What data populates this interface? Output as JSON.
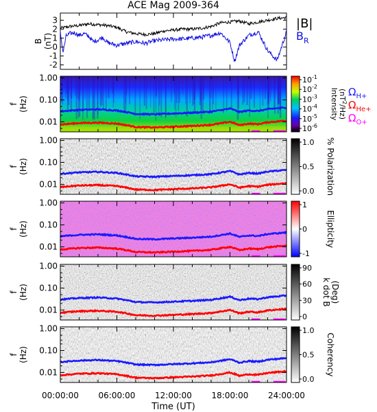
{
  "title": "ACE Mag 2009-364",
  "colors": {
    "B_total": "#000000",
    "B_R": "#1010e0",
    "omega_H": "#1a1aff",
    "omega_He": "#ff0000",
    "omega_O": "#ff00ff"
  },
  "legend_top": {
    "B_total": "|B|",
    "B_R_main": "B",
    "B_R_sub": "R"
  },
  "legend_spec": {
    "H_main": "Ω",
    "H_sub": "H+",
    "He_main": "Ω",
    "He_sub": "He+",
    "O_main": "Ω",
    "O_sub": "O+"
  },
  "colorbars": {
    "intensity": {
      "label": "Intensity",
      "unit_main": "(nT",
      "unit_sup": "2",
      "unit_end": "/Hz)",
      "ticks": [
        {
          "main": "10",
          "sup": "-1"
        },
        {
          "main": "10",
          "sup": "-2"
        },
        {
          "main": "10",
          "sup": "-3"
        },
        {
          "main": "10",
          "sup": "-4"
        },
        {
          "main": "10",
          "sup": "-5"
        },
        {
          "main": "10",
          "sup": "-6"
        }
      ]
    },
    "polarization": {
      "label": "% Polarization",
      "ticks": [
        "1.0",
        "0.5",
        "0.0"
      ]
    },
    "ellipticity": {
      "label": "Ellipticity",
      "ticks": [
        "1",
        "0",
        "-1"
      ]
    },
    "k_dot_b": {
      "label": "k dot B",
      "unit": "(Deg)",
      "ticks": [
        "90",
        "60",
        "30",
        "0"
      ]
    },
    "coherency": {
      "label": "Coherency",
      "ticks": [
        "1.0",
        "0.5",
        "0.0"
      ]
    }
  },
  "chart_data": [
    {
      "type": "line",
      "panel": "magnetic field",
      "ylabel_main": "B",
      "ylabel_unit": "(nT)",
      "yticks": [
        "3",
        "2",
        "1",
        "0",
        "-1",
        "-2"
      ],
      "ylim": [
        -2.5,
        3.8
      ],
      "xlim_hours": [
        0,
        24
      ],
      "series": [
        {
          "name": "|B|",
          "x": [
            0,
            1,
            2,
            3,
            4,
            5,
            6,
            7,
            8,
            9,
            10,
            11,
            12,
            13,
            14,
            15,
            16,
            17,
            18,
            19,
            20,
            21,
            22,
            23,
            24
          ],
          "values": [
            2.1,
            2.3,
            2.4,
            2.6,
            2.5,
            2.4,
            2.2,
            1.7,
            1.5,
            1.4,
            1.5,
            1.8,
            1.9,
            2.0,
            2.0,
            2.1,
            2.3,
            2.7,
            2.8,
            2.9,
            2.6,
            2.8,
            3.0,
            3.2,
            3.3
          ]
        },
        {
          "name": "B_R",
          "x": [
            0,
            0.3,
            0.6,
            1,
            1.5,
            2,
            2.5,
            3,
            3.5,
            4,
            4.5,
            5,
            6,
            7,
            8,
            9,
            10,
            11,
            12,
            13,
            14,
            15,
            16,
            17,
            18,
            18.5,
            19,
            20,
            21,
            22,
            23,
            24
          ],
          "values": [
            1.6,
            -0.6,
            1.2,
            1.5,
            1.6,
            1.3,
            1.5,
            1.2,
            0.6,
            0.8,
            1.1,
            0.5,
            0.2,
            0.4,
            0.6,
            0.4,
            0.7,
            0.8,
            0.9,
            0.9,
            1.0,
            1.1,
            1.3,
            1.6,
            0.5,
            -1.6,
            0.2,
            1.3,
            1.7,
            -0.4,
            -1.5,
            1.7
          ]
        }
      ]
    },
    {
      "type": "heatmap",
      "panel": "intensity",
      "ylabel_main": "f",
      "ylabel_unit": "(Hz)",
      "yticks": [
        "1.00",
        "0.10",
        "0.01"
      ],
      "scale": "log",
      "ylim_hz": [
        0.0035,
        1.2
      ],
      "colorbar_range": [
        1e-06,
        0.1
      ]
    },
    {
      "type": "heatmap",
      "panel": "polarization",
      "ylabel_main": "f",
      "ylabel_unit": "(Hz)",
      "yticks": [
        "1.00",
        "0.10",
        "0.01"
      ],
      "scale": "log",
      "colorbar_range": [
        0,
        1
      ]
    },
    {
      "type": "heatmap",
      "panel": "ellipticity",
      "ylabel_main": "f",
      "ylabel_unit": "(Hz)",
      "yticks": [
        "1.00",
        "0.10",
        "0.01"
      ],
      "scale": "log",
      "colorbar_range": [
        -1,
        1
      ]
    },
    {
      "type": "heatmap",
      "panel": "k dot B",
      "ylabel_main": "f",
      "ylabel_unit": "(Hz)",
      "yticks": [
        "1.00",
        "0.10",
        "0.01"
      ],
      "scale": "log",
      "colorbar_range": [
        0,
        90
      ]
    },
    {
      "type": "heatmap",
      "panel": "coherency",
      "ylabel_main": "f",
      "ylabel_unit": "(Hz)",
      "yticks": [
        "1.00",
        "0.10",
        "0.01"
      ],
      "scale": "log",
      "colorbar_range": [
        0,
        1
      ]
    },
    {
      "type": "line",
      "panel": "gyrofrequency overlays (all spectral panels)",
      "series": [
        {
          "name": "ΩH+",
          "x": [
            0,
            2,
            4,
            6,
            8,
            10,
            12,
            14,
            16,
            17,
            18,
            19,
            20,
            21,
            22,
            24
          ],
          "values": [
            0.03,
            0.035,
            0.037,
            0.033,
            0.023,
            0.022,
            0.024,
            0.026,
            0.029,
            0.034,
            0.04,
            0.028,
            0.033,
            0.031,
            0.038,
            0.045
          ]
        },
        {
          "name": "ΩHe+",
          "x": [
            0,
            2,
            4,
            6,
            8,
            10,
            12,
            14,
            16,
            17,
            18,
            19,
            20,
            21,
            22,
            24
          ],
          "values": [
            0.0075,
            0.0088,
            0.0092,
            0.0083,
            0.0058,
            0.0055,
            0.006,
            0.0065,
            0.0073,
            0.0085,
            0.01,
            0.007,
            0.0083,
            0.0078,
            0.0095,
            0.0113
          ]
        },
        {
          "name": "ΩO+",
          "x": [
            0,
            2,
            4,
            6,
            8,
            10,
            12,
            14,
            16,
            17,
            18,
            19,
            20,
            21,
            22,
            24
          ],
          "values": [
            0.0019,
            0.0022,
            0.0023,
            0.0021,
            0.0015,
            0.0014,
            0.0015,
            0.0016,
            0.0018,
            0.0021,
            0.0025,
            0.0018,
            0.0021,
            0.002,
            0.0024,
            0.0028
          ]
        }
      ]
    }
  ],
  "x_axis": {
    "label": "Time (UT)",
    "ticks": [
      "00:00:00",
      "06:00:00",
      "12:00:00",
      "18:00:00",
      "24:00:00"
    ]
  }
}
